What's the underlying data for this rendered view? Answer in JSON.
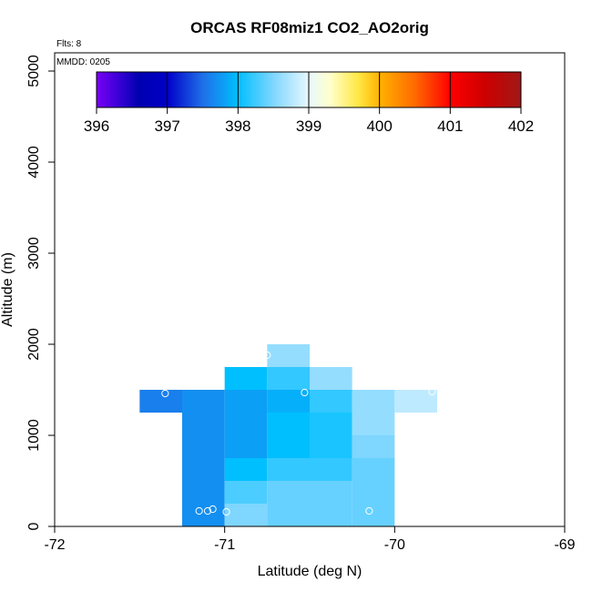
{
  "chart_data": {
    "type": "heatmap",
    "title": "ORCAS RF08miz1 CO2_AO2orig",
    "xlabel": "Latitude (deg N)",
    "ylabel": "Altitude (m)",
    "xlim": [
      -72,
      -69
    ],
    "ylim": [
      0,
      5200
    ],
    "x_ticks": [
      -72,
      -71,
      -70,
      -69
    ],
    "y_ticks": [
      0,
      1000,
      2000,
      3000,
      4000,
      5000
    ],
    "annotations": {
      "flights": "Flts: 8",
      "date": "MMDD: 0205"
    },
    "colorbar": {
      "min": 396,
      "max": 402,
      "ticks": [
        396,
        397,
        398,
        399,
        400,
        401,
        402
      ],
      "stops": [
        {
          "v": 396.0,
          "c": "#7a00f5"
        },
        {
          "v": 396.3,
          "c": "#3c00d8"
        },
        {
          "v": 396.6,
          "c": "#0000b0"
        },
        {
          "v": 397.0,
          "c": "#0000c8"
        },
        {
          "v": 397.5,
          "c": "#1f6fe8"
        },
        {
          "v": 398.0,
          "c": "#00bfff"
        },
        {
          "v": 398.5,
          "c": "#7fd6ff"
        },
        {
          "v": 399.0,
          "c": "#e8f8ff"
        },
        {
          "v": 399.3,
          "c": "#ffffcc"
        },
        {
          "v": 399.7,
          "c": "#ffe845"
        },
        {
          "v": 400.0,
          "c": "#ffb300"
        },
        {
          "v": 400.5,
          "c": "#ff6a00"
        },
        {
          "v": 401.0,
          "c": "#ff0000"
        },
        {
          "v": 401.5,
          "c": "#cc0000"
        },
        {
          "v": 402.0,
          "c": "#a01818"
        }
      ]
    },
    "cell_size": {
      "lat": 0.25,
      "alt": 250
    },
    "cells": [
      {
        "lat": -71.5,
        "alt": 1250,
        "co2": 397.6
      },
      {
        "lat": -71.25,
        "alt": 0,
        "co2": 397.7
      },
      {
        "lat": -71.25,
        "alt": 250,
        "co2": 397.7
      },
      {
        "lat": -71.25,
        "alt": 500,
        "co2": 397.7
      },
      {
        "lat": -71.25,
        "alt": 750,
        "co2": 397.7
      },
      {
        "lat": -71.25,
        "alt": 1000,
        "co2": 397.7
      },
      {
        "lat": -71.25,
        "alt": 1250,
        "co2": 397.7
      },
      {
        "lat": -71.0,
        "alt": 0,
        "co2": 398.5
      },
      {
        "lat": -71.0,
        "alt": 250,
        "co2": 398.3
      },
      {
        "lat": -71.0,
        "alt": 500,
        "co2": 398.0
      },
      {
        "lat": -71.0,
        "alt": 750,
        "co2": 397.8
      },
      {
        "lat": -71.0,
        "alt": 1000,
        "co2": 397.8
      },
      {
        "lat": -71.0,
        "alt": 1250,
        "co2": 397.8
      },
      {
        "lat": -71.0,
        "alt": 1500,
        "co2": 398.0
      },
      {
        "lat": -70.75,
        "alt": 0,
        "co2": 398.4
      },
      {
        "lat": -70.75,
        "alt": 250,
        "co2": 398.4
      },
      {
        "lat": -70.75,
        "alt": 500,
        "co2": 398.2
      },
      {
        "lat": -70.75,
        "alt": 750,
        "co2": 398.0
      },
      {
        "lat": -70.75,
        "alt": 1000,
        "co2": 398.0
      },
      {
        "lat": -70.75,
        "alt": 1250,
        "co2": 397.9
      },
      {
        "lat": -70.75,
        "alt": 1500,
        "co2": 398.2
      },
      {
        "lat": -70.75,
        "alt": 1750,
        "co2": 398.6
      },
      {
        "lat": -70.5,
        "alt": 0,
        "co2": 398.4
      },
      {
        "lat": -70.5,
        "alt": 250,
        "co2": 398.4
      },
      {
        "lat": -70.5,
        "alt": 500,
        "co2": 398.2
      },
      {
        "lat": -70.5,
        "alt": 750,
        "co2": 398.1
      },
      {
        "lat": -70.5,
        "alt": 1000,
        "co2": 398.1
      },
      {
        "lat": -70.5,
        "alt": 1250,
        "co2": 398.2
      },
      {
        "lat": -70.5,
        "alt": 1500,
        "co2": 398.6
      },
      {
        "lat": -70.25,
        "alt": 0,
        "co2": 398.4
      },
      {
        "lat": -70.25,
        "alt": 250,
        "co2": 398.4
      },
      {
        "lat": -70.25,
        "alt": 500,
        "co2": 398.4
      },
      {
        "lat": -70.25,
        "alt": 750,
        "co2": 398.5
      },
      {
        "lat": -70.25,
        "alt": 1000,
        "co2": 398.6
      },
      {
        "lat": -70.25,
        "alt": 1250,
        "co2": 398.6
      },
      {
        "lat": -70.0,
        "alt": 1250,
        "co2": 398.8
      }
    ],
    "points": [
      {
        "lat": -71.35,
        "alt": 1460
      },
      {
        "lat": -71.15,
        "alt": 170
      },
      {
        "lat": -71.1,
        "alt": 170
      },
      {
        "lat": -71.07,
        "alt": 190
      },
      {
        "lat": -70.99,
        "alt": 160
      },
      {
        "lat": -70.75,
        "alt": 1880
      },
      {
        "lat": -70.53,
        "alt": 1470
      },
      {
        "lat": -70.15,
        "alt": 170
      },
      {
        "lat": -69.78,
        "alt": 1480
      }
    ]
  }
}
